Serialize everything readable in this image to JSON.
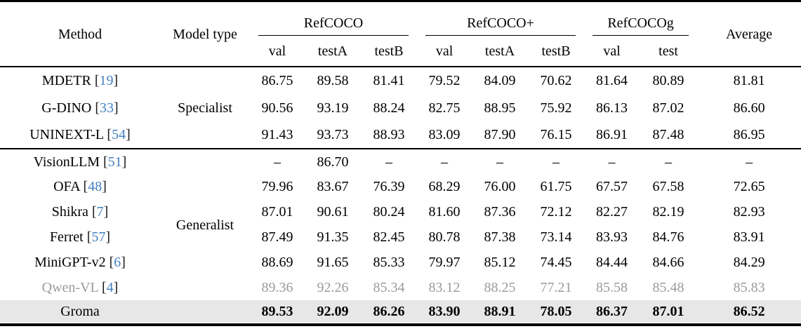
{
  "table": {
    "header": {
      "method": "Method",
      "model_type": "Model type",
      "groups": [
        {
          "label": "RefCOCO",
          "cols": [
            "val",
            "testA",
            "testB"
          ]
        },
        {
          "label": "RefCOCO+",
          "cols": [
            "val",
            "testA",
            "testB"
          ]
        },
        {
          "label": "RefCOCOg",
          "cols": [
            "val",
            "test"
          ]
        }
      ],
      "average": "Average"
    },
    "body_groups": [
      {
        "model_type": "Specialist",
        "rows": [
          {
            "method": "MDETR",
            "cite": "19",
            "values": [
              "86.75",
              "89.58",
              "81.41",
              "79.52",
              "84.09",
              "70.62",
              "81.64",
              "80.89",
              "81.81"
            ]
          },
          {
            "method": "G-DINO",
            "cite": "33",
            "values": [
              "90.56",
              "93.19",
              "88.24",
              "82.75",
              "88.95",
              "75.92",
              "86.13",
              "87.02",
              "86.60"
            ]
          },
          {
            "method": "UNINEXT-L",
            "cite": "54",
            "values": [
              "91.43",
              "93.73",
              "88.93",
              "83.09",
              "87.90",
              "76.15",
              "86.91",
              "87.48",
              "86.95"
            ]
          }
        ]
      },
      {
        "model_type": "Generalist",
        "rows": [
          {
            "method": "VisionLLM",
            "cite": "51",
            "values": [
              "–",
              "86.70",
              "–",
              "–",
              "–",
              "–",
              "–",
              "–",
              "–"
            ]
          },
          {
            "method": "OFA",
            "cite": "48",
            "values": [
              "79.96",
              "83.67",
              "76.39",
              "68.29",
              "76.00",
              "61.75",
              "67.57",
              "67.58",
              "72.65"
            ]
          },
          {
            "method": "Shikra",
            "cite": "7",
            "values": [
              "87.01",
              "90.61",
              "80.24",
              "81.60",
              "87.36",
              "72.12",
              "82.27",
              "82.19",
              "82.93"
            ]
          },
          {
            "method": "Ferret",
            "cite": "57",
            "values": [
              "87.49",
              "91.35",
              "82.45",
              "80.78",
              "87.38",
              "73.14",
              "83.93",
              "84.76",
              "83.91"
            ]
          },
          {
            "method": "MiniGPT-v2",
            "cite": "6",
            "values": [
              "88.69",
              "91.65",
              "85.33",
              "79.97",
              "85.12",
              "74.45",
              "84.44",
              "84.66",
              "84.29"
            ]
          },
          {
            "method": "Qwen-VL",
            "cite": "4",
            "muted": true,
            "values": [
              "89.36",
              "92.26",
              "85.34",
              "83.12",
              "88.25",
              "77.21",
              "85.58",
              "85.48",
              "85.83"
            ]
          }
        ]
      }
    ],
    "highlight_row": {
      "method": "Groma",
      "values": [
        "89.53",
        "92.09",
        "86.26",
        "83.90",
        "88.91",
        "78.05",
        "86.37",
        "87.01",
        "86.52"
      ]
    }
  },
  "colors": {
    "citation_link": "#4180c0",
    "muted_text": "#9b9b9b",
    "highlight_row_bg": "#e7e7e7",
    "rule": "#000000"
  }
}
